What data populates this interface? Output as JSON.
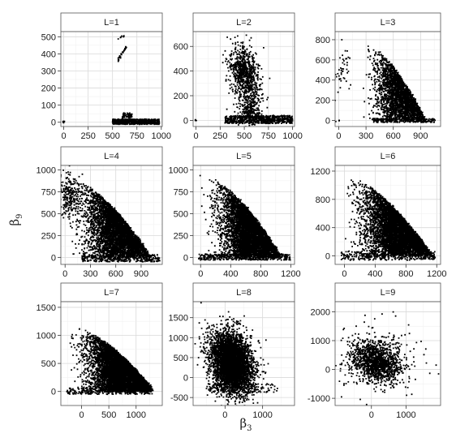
{
  "chart_data": {
    "type": "scatter",
    "layout": "3x3 facet grid",
    "xlabel": {
      "symbol": "β",
      "sub": "3"
    },
    "ylabel": {
      "symbol": "β",
      "sub": "9"
    },
    "point_color": "#000000",
    "strip_fill": "#ffffff",
    "grid": true,
    "panels": [
      {
        "label": "L=1",
        "xlim": [
          -30,
          1010
        ],
        "ylim": [
          -25,
          530
        ],
        "xticks": [
          0,
          250,
          500,
          750,
          1000
        ],
        "yticks": [
          0,
          100,
          200,
          300,
          400,
          500
        ],
        "clusters": [
          {
            "kind": "box",
            "n": 700,
            "x": [
              500,
              980
            ],
            "y": [
              -12,
              18
            ]
          },
          {
            "kind": "box",
            "n": 60,
            "x": [
              600,
              700
            ],
            "y": [
              25,
              55
            ]
          },
          {
            "kind": "line",
            "n": 30,
            "x0": 550,
            "x1": 640,
            "y0": 360,
            "y1": 440,
            "jit": 4
          },
          {
            "kind": "line",
            "n": 8,
            "x0": 555,
            "x1": 620,
            "y0": 490,
            "y1": 505,
            "jit": 6
          },
          {
            "kind": "box",
            "n": 6,
            "x": [
              -8,
              8
            ],
            "y": [
              -6,
              6
            ]
          }
        ]
      },
      {
        "label": "L=2",
        "xlim": [
          -30,
          1020
        ],
        "ylim": [
          -50,
          720
        ],
        "xticks": [
          0,
          250,
          500,
          750,
          1000
        ],
        "yticks": [
          0,
          200,
          400,
          600
        ],
        "clusters": [
          {
            "kind": "gauss",
            "n": 800,
            "cx": 510,
            "cy": 370,
            "sx": 80,
            "sy": 110,
            "rho": -0.3
          },
          {
            "kind": "box",
            "n": 600,
            "x": [
              300,
              1000
            ],
            "y": [
              -25,
              40
            ]
          },
          {
            "kind": "gauss",
            "n": 250,
            "cx": 560,
            "cy": 80,
            "sx": 60,
            "sy": 60,
            "rho": 0
          },
          {
            "kind": "box",
            "n": 4,
            "x": [
              -8,
              8
            ],
            "y": [
              -6,
              6
            ]
          }
        ]
      },
      {
        "label": "L=3",
        "xlim": [
          -40,
          1120
        ],
        "ylim": [
          -60,
          880
        ],
        "xticks": [
          0,
          300,
          600,
          900
        ],
        "yticks": [
          0,
          200,
          400,
          600,
          800
        ],
        "clusters": [
          {
            "kind": "tri",
            "n": 2500,
            "x": [
              220,
              960
            ],
            "ytop": [
              800,
              0
            ]
          },
          {
            "kind": "box",
            "n": 250,
            "x": [
              380,
              1060
            ],
            "y": [
              -20,
              20
            ]
          },
          {
            "kind": "gauss",
            "n": 50,
            "cx": 40,
            "cy": 520,
            "sx": 50,
            "sy": 160,
            "rho": 0
          },
          {
            "kind": "box",
            "n": 4,
            "x": [
              -8,
              8
            ],
            "y": [
              -6,
              6
            ]
          }
        ]
      },
      {
        "label": "L=4",
        "xlim": [
          -50,
          1150
        ],
        "ylim": [
          -80,
          1050
        ],
        "xticks": [
          0,
          300,
          600,
          900
        ],
        "yticks": [
          0,
          250,
          500,
          750,
          1000
        ],
        "clusters": [
          {
            "kind": "tri",
            "n": 4000,
            "x": [
              -10,
              1020
            ],
            "ytop": [
              930,
              0
            ]
          },
          {
            "kind": "box",
            "n": 350,
            "x": [
              200,
              1120
            ],
            "y": [
              -50,
              30
            ]
          },
          {
            "kind": "gauss",
            "n": 250,
            "cx": 60,
            "cy": 700,
            "sx": 60,
            "sy": 120,
            "rho": 0
          }
        ]
      },
      {
        "label": "L=5",
        "xlim": [
          -100,
          1250
        ],
        "ylim": [
          -80,
          1050
        ],
        "xticks": [
          0,
          400,
          800,
          1200
        ],
        "yticks": [
          0,
          250,
          500,
          750,
          1000
        ],
        "clusters": [
          {
            "kind": "tri",
            "n": 4500,
            "x": [
              -30,
              1080
            ],
            "ytop": [
              960,
              0
            ]
          },
          {
            "kind": "box",
            "n": 400,
            "x": [
              -30,
              1200
            ],
            "y": [
              -30,
              40
            ]
          }
        ]
      },
      {
        "label": "L=6",
        "xlim": [
          -120,
          1250
        ],
        "ylim": [
          -120,
          1280
        ],
        "xticks": [
          0,
          400,
          800,
          1200
        ],
        "yticks": [
          0,
          400,
          800,
          1200
        ],
        "clusters": [
          {
            "kind": "tri",
            "n": 5000,
            "x": [
              -40,
              1150
            ],
            "ytop": [
              1150,
              0
            ]
          },
          {
            "kind": "box",
            "n": 300,
            "x": [
              -40,
              1180
            ],
            "y": [
              -60,
              60
            ]
          }
        ]
      },
      {
        "label": "L=7",
        "xlim": [
          -380,
          1480
        ],
        "ylim": [
          -250,
          1600
        ],
        "xticks": [
          0,
          500,
          1000
        ],
        "yticks": [
          0,
          500,
          1000,
          1500
        ],
        "clusters": [
          {
            "kind": "tri",
            "n": 5500,
            "x": [
              -270,
              1320
            ],
            "ytop": [
              1180,
              40
            ]
          },
          {
            "kind": "box",
            "n": 300,
            "x": [
              -270,
              1300
            ],
            "y": [
              -50,
              60
            ]
          }
        ]
      },
      {
        "label": "L=8",
        "xlim": [
          -850,
          1850
        ],
        "ylim": [
          -700,
          1900
        ],
        "xticks": [
          0,
          1000
        ],
        "yticks": [
          -500,
          0,
          500,
          1000,
          1500
        ],
        "clusters": [
          {
            "kind": "gauss",
            "n": 4500,
            "cx": 180,
            "cy": 380,
            "sx": 280,
            "sy": 380,
            "rho": -0.25
          },
          {
            "kind": "box",
            "n": 150,
            "x": [
              -500,
              1400
            ],
            "y": [
              -380,
              -150
            ]
          }
        ]
      },
      {
        "label": "L=9",
        "xlim": [
          -1050,
          2000
        ],
        "ylim": [
          -1250,
          2350
        ],
        "xticks": [
          0,
          1000
        ],
        "yticks": [
          -1000,
          0,
          1000,
          2000
        ],
        "clusters": [
          {
            "kind": "gauss",
            "n": 1300,
            "cx": 150,
            "cy": 250,
            "sx": 350,
            "sy": 350,
            "rho": -0.2
          },
          {
            "kind": "gauss",
            "n": 200,
            "cx": 200,
            "cy": 300,
            "sx": 650,
            "sy": 650,
            "rho": 0
          }
        ]
      }
    ]
  }
}
